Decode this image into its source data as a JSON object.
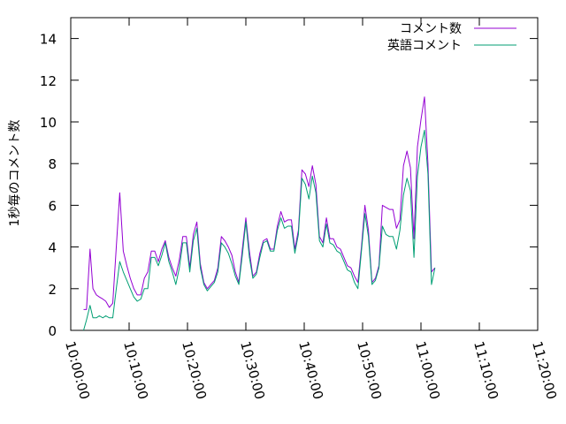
{
  "chart_data": {
    "type": "line",
    "title": "",
    "xlabel": "",
    "ylabel": "1秒毎のコメント数",
    "xlim": [
      0,
      80
    ],
    "ylim": [
      0,
      15
    ],
    "x_ticks": [
      {
        "value": 0,
        "label": "10:00:00"
      },
      {
        "value": 10,
        "label": "10:10:00"
      },
      {
        "value": 20,
        "label": "10:20:00"
      },
      {
        "value": 30,
        "label": "10:30:00"
      },
      {
        "value": 40,
        "label": "10:40:00"
      },
      {
        "value": 50,
        "label": "10:50:00"
      },
      {
        "value": 60,
        "label": "11:00:00"
      },
      {
        "value": 70,
        "label": "11:10:00"
      },
      {
        "value": 80,
        "label": "11:20:00"
      }
    ],
    "y_ticks": [
      0,
      2,
      4,
      6,
      8,
      10,
      12,
      14
    ],
    "grid": false,
    "legend_position": "top-right",
    "series": [
      {
        "name": "コメント数",
        "color": "#9400d3",
        "points": [
          [
            2.2,
            1.0
          ],
          [
            2.7,
            1.0
          ],
          [
            3.3,
            3.9
          ],
          [
            3.8,
            2.0
          ],
          [
            4.4,
            1.7
          ],
          [
            4.9,
            1.6
          ],
          [
            5.5,
            1.5
          ],
          [
            6.0,
            1.4
          ],
          [
            6.6,
            1.1
          ],
          [
            7.2,
            1.3
          ],
          [
            7.8,
            4.0
          ],
          [
            8.4,
            6.6
          ],
          [
            9.0,
            3.8
          ],
          [
            9.6,
            3.1
          ],
          [
            10.2,
            2.5
          ],
          [
            10.8,
            2.0
          ],
          [
            11.4,
            1.7
          ],
          [
            12.0,
            1.7
          ],
          [
            12.6,
            2.5
          ],
          [
            13.2,
            2.8
          ],
          [
            13.8,
            3.8
          ],
          [
            14.4,
            3.8
          ],
          [
            15.0,
            3.3
          ],
          [
            15.6,
            3.9
          ],
          [
            16.2,
            4.3
          ],
          [
            16.8,
            3.5
          ],
          [
            17.4,
            3.0
          ],
          [
            18.0,
            2.6
          ],
          [
            18.6,
            3.4
          ],
          [
            19.2,
            4.5
          ],
          [
            19.8,
            4.5
          ],
          [
            20.4,
            3.0
          ],
          [
            21.0,
            4.6
          ],
          [
            21.6,
            5.2
          ],
          [
            22.2,
            3.2
          ],
          [
            22.8,
            2.3
          ],
          [
            23.4,
            2.0
          ],
          [
            24.0,
            2.2
          ],
          [
            24.6,
            2.4
          ],
          [
            25.2,
            3.0
          ],
          [
            25.8,
            4.5
          ],
          [
            26.4,
            4.3
          ],
          [
            27.0,
            4.0
          ],
          [
            27.6,
            3.6
          ],
          [
            28.2,
            2.8
          ],
          [
            28.8,
            2.3
          ],
          [
            29.4,
            3.9
          ],
          [
            30.0,
            5.4
          ],
          [
            30.6,
            3.8
          ],
          [
            31.2,
            2.6
          ],
          [
            31.8,
            2.8
          ],
          [
            32.4,
            3.7
          ],
          [
            33.0,
            4.3
          ],
          [
            33.6,
            4.4
          ],
          [
            34.2,
            3.9
          ],
          [
            34.8,
            3.9
          ],
          [
            35.4,
            5.0
          ],
          [
            36.0,
            5.7
          ],
          [
            36.6,
            5.2
          ],
          [
            37.2,
            5.3
          ],
          [
            37.8,
            5.3
          ],
          [
            38.4,
            3.9
          ],
          [
            39.0,
            4.8
          ],
          [
            39.6,
            7.7
          ],
          [
            40.2,
            7.5
          ],
          [
            40.8,
            6.9
          ],
          [
            41.4,
            7.9
          ],
          [
            42.0,
            7.0
          ],
          [
            42.6,
            4.5
          ],
          [
            43.2,
            4.2
          ],
          [
            43.8,
            5.4
          ],
          [
            44.4,
            4.4
          ],
          [
            45.0,
            4.4
          ],
          [
            45.6,
            4.0
          ],
          [
            46.2,
            3.9
          ],
          [
            46.8,
            3.5
          ],
          [
            47.4,
            3.1
          ],
          [
            48.0,
            3.0
          ],
          [
            48.6,
            2.6
          ],
          [
            49.2,
            2.3
          ],
          [
            49.8,
            4.0
          ],
          [
            50.4,
            6.0
          ],
          [
            51.0,
            4.8
          ],
          [
            51.6,
            2.3
          ],
          [
            52.2,
            2.5
          ],
          [
            52.8,
            3.1
          ],
          [
            53.4,
            6.0
          ],
          [
            54.0,
            5.9
          ],
          [
            54.6,
            5.8
          ],
          [
            55.2,
            5.8
          ],
          [
            55.8,
            4.9
          ],
          [
            56.4,
            5.3
          ],
          [
            57.0,
            7.9
          ],
          [
            57.6,
            8.6
          ],
          [
            58.2,
            7.8
          ],
          [
            58.8,
            4.4
          ],
          [
            59.4,
            8.8
          ],
          [
            60.0,
            10.1
          ],
          [
            60.6,
            11.2
          ],
          [
            61.2,
            8.0
          ],
          [
            61.8,
            2.8
          ],
          [
            62.4,
            3.0
          ]
        ]
      },
      {
        "name": "英語コメント",
        "color": "#009e73",
        "points": [
          [
            2.2,
            0.0
          ],
          [
            2.7,
            0.5
          ],
          [
            3.3,
            1.2
          ],
          [
            3.8,
            0.6
          ],
          [
            4.4,
            0.6
          ],
          [
            4.9,
            0.7
          ],
          [
            5.5,
            0.6
          ],
          [
            6.0,
            0.7
          ],
          [
            6.6,
            0.6
          ],
          [
            7.2,
            0.6
          ],
          [
            7.8,
            2.0
          ],
          [
            8.4,
            3.3
          ],
          [
            9.0,
            2.8
          ],
          [
            9.6,
            2.4
          ],
          [
            10.2,
            2.0
          ],
          [
            10.8,
            1.6
          ],
          [
            11.4,
            1.4
          ],
          [
            12.0,
            1.5
          ],
          [
            12.6,
            2.0
          ],
          [
            13.2,
            2.0
          ],
          [
            13.8,
            3.5
          ],
          [
            14.4,
            3.5
          ],
          [
            15.0,
            3.1
          ],
          [
            15.6,
            3.6
          ],
          [
            16.2,
            4.2
          ],
          [
            16.8,
            3.3
          ],
          [
            17.4,
            2.8
          ],
          [
            18.0,
            2.2
          ],
          [
            18.6,
            3.0
          ],
          [
            19.2,
            4.2
          ],
          [
            19.8,
            4.2
          ],
          [
            20.4,
            2.8
          ],
          [
            21.0,
            4.3
          ],
          [
            21.6,
            4.9
          ],
          [
            22.2,
            3.0
          ],
          [
            22.8,
            2.2
          ],
          [
            23.4,
            1.9
          ],
          [
            24.0,
            2.1
          ],
          [
            24.6,
            2.3
          ],
          [
            25.2,
            2.8
          ],
          [
            25.8,
            4.2
          ],
          [
            26.4,
            4.0
          ],
          [
            27.0,
            3.7
          ],
          [
            27.6,
            3.2
          ],
          [
            28.2,
            2.6
          ],
          [
            28.8,
            2.2
          ],
          [
            29.4,
            3.6
          ],
          [
            30.0,
            5.2
          ],
          [
            30.6,
            3.5
          ],
          [
            31.2,
            2.5
          ],
          [
            31.8,
            2.7
          ],
          [
            32.4,
            3.5
          ],
          [
            33.0,
            4.2
          ],
          [
            33.6,
            4.3
          ],
          [
            34.2,
            3.8
          ],
          [
            34.8,
            3.8
          ],
          [
            35.4,
            4.8
          ],
          [
            36.0,
            5.4
          ],
          [
            36.6,
            4.9
          ],
          [
            37.2,
            5.0
          ],
          [
            37.8,
            5.0
          ],
          [
            38.4,
            3.7
          ],
          [
            39.0,
            4.6
          ],
          [
            39.6,
            7.3
          ],
          [
            40.2,
            7.0
          ],
          [
            40.8,
            6.3
          ],
          [
            41.4,
            7.4
          ],
          [
            42.0,
            6.6
          ],
          [
            42.6,
            4.3
          ],
          [
            43.2,
            4.0
          ],
          [
            43.8,
            5.1
          ],
          [
            44.4,
            4.2
          ],
          [
            45.0,
            4.1
          ],
          [
            45.6,
            3.8
          ],
          [
            46.2,
            3.7
          ],
          [
            46.8,
            3.3
          ],
          [
            47.4,
            2.9
          ],
          [
            48.0,
            2.8
          ],
          [
            48.6,
            2.3
          ],
          [
            49.2,
            2.0
          ],
          [
            49.8,
            3.8
          ],
          [
            50.4,
            5.6
          ],
          [
            51.0,
            4.5
          ],
          [
            51.6,
            2.2
          ],
          [
            52.2,
            2.4
          ],
          [
            52.8,
            3.0
          ],
          [
            53.4,
            5.0
          ],
          [
            54.0,
            4.6
          ],
          [
            54.6,
            4.5
          ],
          [
            55.2,
            4.5
          ],
          [
            55.8,
            3.9
          ],
          [
            56.4,
            4.8
          ],
          [
            57.0,
            6.5
          ],
          [
            57.6,
            7.3
          ],
          [
            58.2,
            6.7
          ],
          [
            58.8,
            3.5
          ],
          [
            59.4,
            7.4
          ],
          [
            60.0,
            8.8
          ],
          [
            60.6,
            9.6
          ],
          [
            61.2,
            7.5
          ],
          [
            61.8,
            2.2
          ],
          [
            62.4,
            3.0
          ]
        ]
      }
    ]
  }
}
